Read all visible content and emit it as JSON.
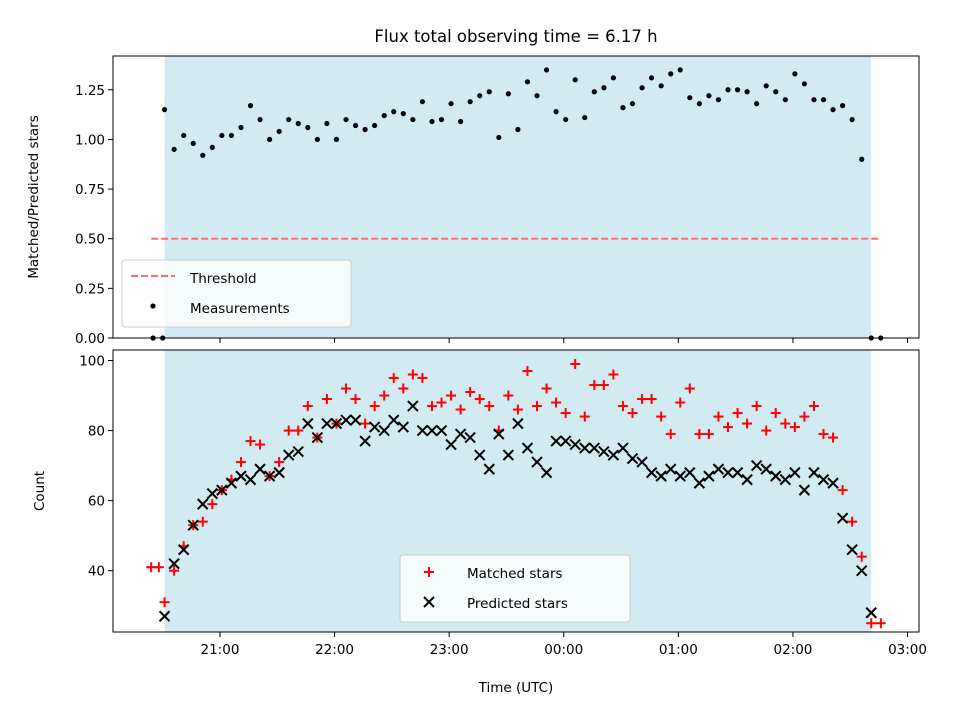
{
  "chart_data": [
    {
      "type": "scatter",
      "title": "Flux total observing time = 6.17 h",
      "xlabel": "",
      "ylabel": "Matched/Predicted stars",
      "ylim": [
        0,
        1.42
      ],
      "yticks": [
        "0.00",
        "0.25",
        "0.50",
        "0.75",
        "1.00",
        "1.25"
      ],
      "ytick_values": [
        0,
        0.25,
        0.5,
        0.75,
        1.0,
        1.25
      ],
      "shaded_interval": [
        "20:31",
        "02:41"
      ],
      "shade_color": "#add8e6",
      "threshold": {
        "value": 0.5,
        "from": "20:24",
        "to": "02:46",
        "color": "#ff6e6e"
      },
      "legend_position": "lower left",
      "legend": [
        "Threshold",
        "Measurements"
      ],
      "series": [
        {
          "name": "Measurements",
          "color": "#000000",
          "x": [
            "20:25",
            "20:30",
            "20:31",
            "20:36",
            "20:41",
            "20:46",
            "20:51",
            "20:56",
            "21:01",
            "21:06",
            "21:11",
            "21:16",
            "21:21",
            "21:26",
            "21:31",
            "21:36",
            "21:41",
            "21:46",
            "21:51",
            "21:56",
            "22:01",
            "22:06",
            "22:11",
            "22:16",
            "22:21",
            "22:26",
            "22:31",
            "22:36",
            "22:41",
            "22:46",
            "22:51",
            "22:56",
            "23:01",
            "23:06",
            "23:11",
            "23:16",
            "23:21",
            "23:26",
            "23:31",
            "23:36",
            "23:41",
            "23:46",
            "23:51",
            "23:56",
            "00:01",
            "00:06",
            "00:11",
            "00:16",
            "00:21",
            "00:26",
            "00:31",
            "00:36",
            "00:41",
            "00:46",
            "00:51",
            "00:56",
            "01:01",
            "01:06",
            "01:11",
            "01:16",
            "01:21",
            "01:26",
            "01:31",
            "01:36",
            "01:41",
            "01:46",
            "01:51",
            "01:56",
            "02:01",
            "02:06",
            "02:11",
            "02:16",
            "02:21",
            "02:26",
            "02:31",
            "02:36",
            "02:41",
            "02:46"
          ],
          "y": [
            0.0,
            0.0,
            1.15,
            0.95,
            1.02,
            0.98,
            0.92,
            0.96,
            1.02,
            1.02,
            1.06,
            1.17,
            1.1,
            1.0,
            1.04,
            1.1,
            1.08,
            1.06,
            1.0,
            1.08,
            1.0,
            1.1,
            1.07,
            1.05,
            1.07,
            1.12,
            1.14,
            1.13,
            1.1,
            1.19,
            1.09,
            1.1,
            1.18,
            1.09,
            1.19,
            1.22,
            1.24,
            1.01,
            1.23,
            1.05,
            1.29,
            1.22,
            1.35,
            1.14,
            1.1,
            1.3,
            1.11,
            1.24,
            1.26,
            1.31,
            1.16,
            1.18,
            1.26,
            1.31,
            1.27,
            1.33,
            1.35,
            1.21,
            1.18,
            1.22,
            1.2,
            1.25,
            1.25,
            1.24,
            1.18,
            1.27,
            1.24,
            1.2,
            1.33,
            1.28,
            1.2,
            1.2,
            1.15,
            1.17,
            1.1,
            0.9,
            0.0,
            0.0
          ]
        }
      ]
    },
    {
      "type": "scatter",
      "title": "",
      "xlabel": "Time (UTC)",
      "ylabel": "Count",
      "ylim": [
        22.5,
        103
      ],
      "yticks": [
        "40",
        "60",
        "80",
        "100"
      ],
      "ytick_values": [
        40,
        60,
        80,
        100
      ],
      "xlim": [
        "20:04",
        "03:06"
      ],
      "xticks": [
        "21:00",
        "22:00",
        "23:00",
        "00:00",
        "01:00",
        "02:00",
        "03:00"
      ],
      "shaded_interval": [
        "20:31",
        "02:41"
      ],
      "shade_color": "#add8e6",
      "legend_position": "lower center",
      "legend": [
        "Matched stars",
        "Predicted stars"
      ],
      "series": [
        {
          "name": "Matched stars",
          "marker": "+",
          "color": "#ff0000",
          "x": [
            "20:24",
            "20:28",
            "20:31",
            "20:36",
            "20:41",
            "20:46",
            "20:51",
            "20:56",
            "21:01",
            "21:06",
            "21:11",
            "21:16",
            "21:21",
            "21:26",
            "21:31",
            "21:36",
            "21:41",
            "21:46",
            "21:51",
            "21:56",
            "22:01",
            "22:06",
            "22:11",
            "22:16",
            "22:21",
            "22:26",
            "22:31",
            "22:36",
            "22:41",
            "22:46",
            "22:51",
            "22:56",
            "23:01",
            "23:06",
            "23:11",
            "23:16",
            "23:21",
            "23:26",
            "23:31",
            "23:36",
            "23:41",
            "23:46",
            "23:51",
            "23:56",
            "00:01",
            "00:06",
            "00:11",
            "00:16",
            "00:21",
            "00:26",
            "00:31",
            "00:36",
            "00:41",
            "00:46",
            "00:51",
            "00:56",
            "01:01",
            "01:06",
            "01:11",
            "01:16",
            "01:21",
            "01:26",
            "01:31",
            "01:36",
            "01:41",
            "01:46",
            "01:51",
            "01:56",
            "02:01",
            "02:06",
            "02:11",
            "02:16",
            "02:21",
            "02:26",
            "02:31",
            "02:36",
            "02:41",
            "02:46"
          ],
          "y": [
            41,
            41,
            31,
            40,
            47,
            53,
            54,
            59,
            63,
            66,
            71,
            77,
            76,
            67,
            71,
            80,
            80,
            87,
            78,
            89,
            82,
            92,
            89,
            82,
            87,
            90,
            95,
            92,
            96,
            95,
            87,
            88,
            90,
            86,
            91,
            89,
            87,
            80,
            90,
            86,
            97,
            87,
            92,
            88,
            85,
            99,
            84,
            93,
            93,
            96,
            87,
            85,
            89,
            89,
            84,
            79,
            88,
            92,
            79,
            79,
            84,
            81,
            85,
            82,
            87,
            80,
            85,
            82,
            81,
            84,
            87,
            79,
            78,
            63,
            54,
            44,
            25,
            25
          ]
        },
        {
          "name": "Predicted stars",
          "marker": "x",
          "color": "#000000",
          "x": [
            "20:31",
            "20:36",
            "20:41",
            "20:46",
            "20:51",
            "20:56",
            "21:01",
            "21:06",
            "21:11",
            "21:16",
            "21:21",
            "21:26",
            "21:31",
            "21:36",
            "21:41",
            "21:46",
            "21:51",
            "21:56",
            "22:01",
            "22:06",
            "22:11",
            "22:16",
            "22:21",
            "22:26",
            "22:31",
            "22:36",
            "22:41",
            "22:46",
            "22:51",
            "22:56",
            "23:01",
            "23:06",
            "23:11",
            "23:16",
            "23:21",
            "23:26",
            "23:31",
            "23:36",
            "23:41",
            "23:46",
            "23:51",
            "23:56",
            "00:01",
            "00:06",
            "00:11",
            "00:16",
            "00:21",
            "00:26",
            "00:31",
            "00:36",
            "00:41",
            "00:46",
            "00:51",
            "00:56",
            "01:01",
            "01:06",
            "01:11",
            "01:16",
            "01:21",
            "01:26",
            "01:31",
            "01:36",
            "01:41",
            "01:46",
            "01:51",
            "01:56",
            "02:01",
            "02:06",
            "02:11",
            "02:16",
            "02:21",
            "02:26",
            "02:31",
            "02:36",
            "02:41"
          ],
          "y": [
            27,
            42,
            46,
            53,
            59,
            62,
            63,
            65,
            67,
            66,
            69,
            67,
            68,
            73,
            74,
            82,
            78,
            82,
            82,
            83,
            83,
            77,
            81,
            80,
            83,
            81,
            87,
            80,
            80,
            80,
            76,
            79,
            78,
            73,
            69,
            79,
            73,
            82,
            75,
            71,
            68,
            77,
            77,
            76,
            75,
            75,
            74,
            73,
            75,
            72,
            71,
            68,
            67,
            69,
            67,
            68,
            65,
            67,
            69,
            68,
            68,
            66,
            70,
            69,
            67,
            66,
            68,
            63,
            68,
            66,
            65,
            55,
            46,
            40,
            28
          ]
        }
      ]
    }
  ]
}
